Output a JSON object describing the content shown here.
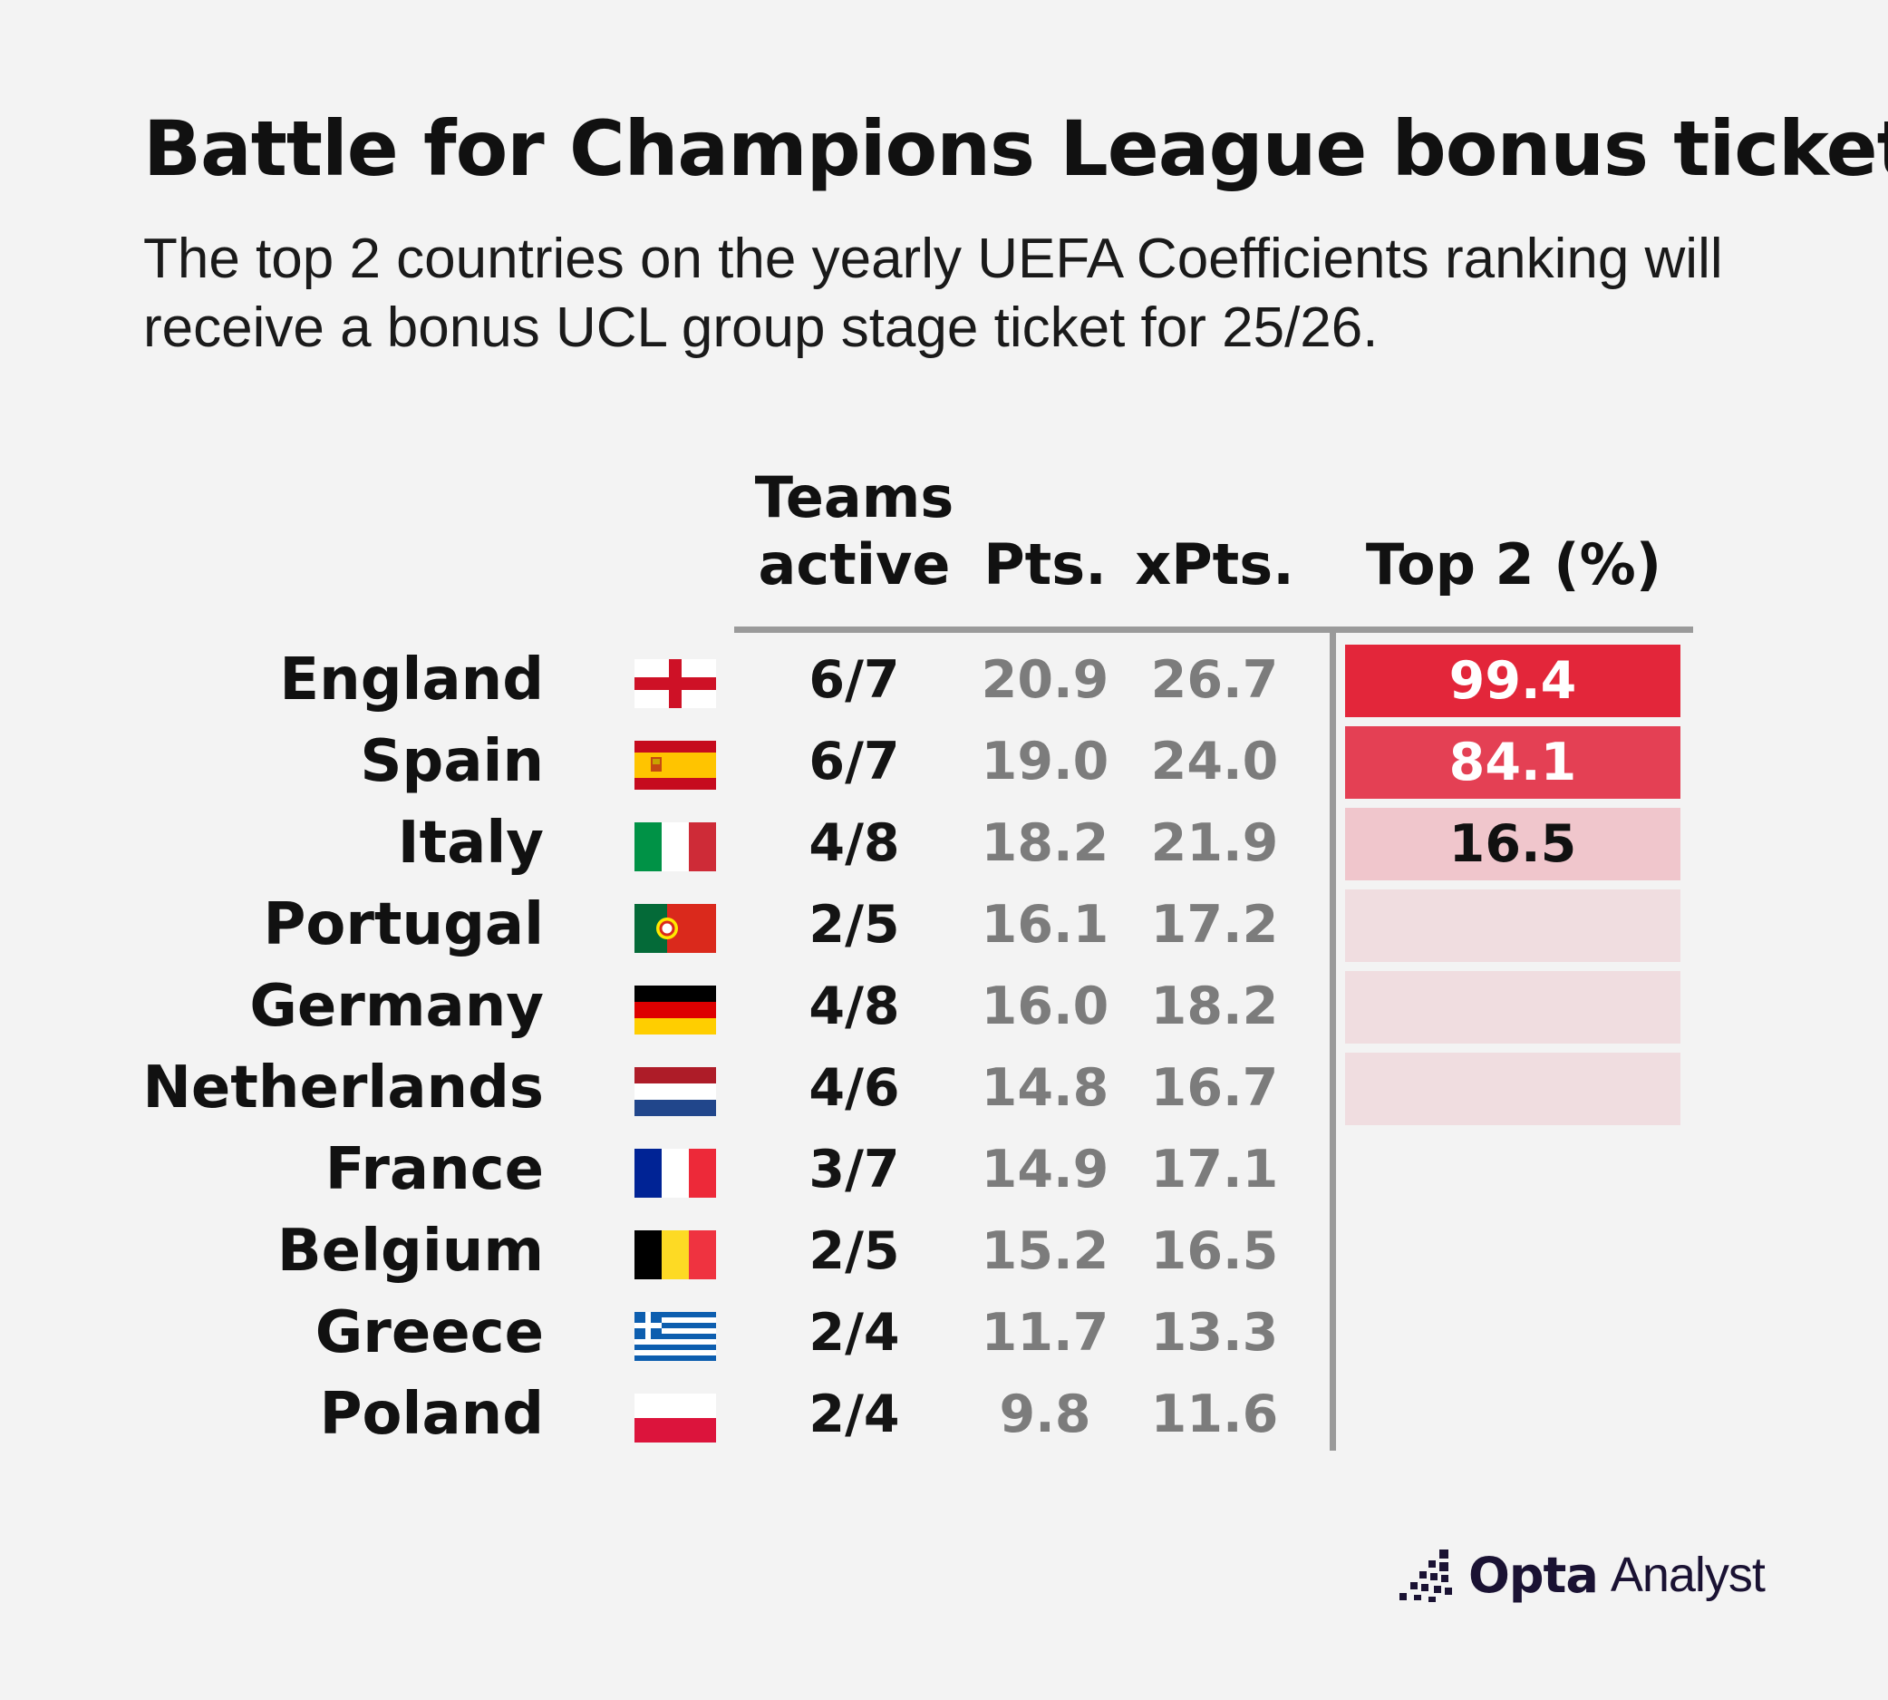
{
  "title": "Battle for Champions League bonus ticket",
  "subtitle": "The top 2 countries on the yearly UEFA Coefficients ranking will receive a bonus UCL group stage ticket for 25/26.",
  "logo": {
    "brand": "Opta",
    "product": "Analyst"
  },
  "colors": {
    "background": "#f3f3f3",
    "pct_high": "#e3263a",
    "pct_mid": "#e44054",
    "pct_low": "#f0c6cc",
    "pct_zero": "#f0dde0",
    "divider": "#9a9a9a",
    "muted_number": "#7c7c7c"
  },
  "chart_data": {
    "type": "table",
    "columns": [
      "Teams active",
      "Pts.",
      "xPts.",
      "Top 2 (%)"
    ],
    "column_headers": {
      "teams_line1": "Teams",
      "teams_line2": "active",
      "pts": "Pts.",
      "xpts": "xPts.",
      "top2": "Top 2 (%)"
    },
    "rows": [
      {
        "country": "England",
        "flag": "england-flag",
        "teams_active": "6/7",
        "pts": "20.9",
        "xpts": "26.7",
        "top2": "99.4",
        "top2_value": 99.4
      },
      {
        "country": "Spain",
        "flag": "spain-flag",
        "teams_active": "6/7",
        "pts": "19.0",
        "xpts": "24.0",
        "top2": "84.1",
        "top2_value": 84.1
      },
      {
        "country": "Italy",
        "flag": "italy-flag",
        "teams_active": "4/8",
        "pts": "18.2",
        "xpts": "21.9",
        "top2": "16.5",
        "top2_value": 16.5
      },
      {
        "country": "Portugal",
        "flag": "portugal-flag",
        "teams_active": "2/5",
        "pts": "16.1",
        "xpts": "17.2",
        "top2": "",
        "top2_value": 0
      },
      {
        "country": "Germany",
        "flag": "germany-flag",
        "teams_active": "4/8",
        "pts": "16.0",
        "xpts": "18.2",
        "top2": "",
        "top2_value": 0
      },
      {
        "country": "Netherlands",
        "flag": "netherlands-flag",
        "teams_active": "4/6",
        "pts": "14.8",
        "xpts": "16.7",
        "top2": "",
        "top2_value": 0
      },
      {
        "country": "France",
        "flag": "france-flag",
        "teams_active": "3/7",
        "pts": "14.9",
        "xpts": "17.1",
        "top2": null,
        "top2_value": null
      },
      {
        "country": "Belgium",
        "flag": "belgium-flag",
        "teams_active": "2/5",
        "pts": "15.2",
        "xpts": "16.5",
        "top2": null,
        "top2_value": null
      },
      {
        "country": "Greece",
        "flag": "greece-flag",
        "teams_active": "2/4",
        "pts": "11.7",
        "xpts": "13.3",
        "top2": null,
        "top2_value": null
      },
      {
        "country": "Poland",
        "flag": "poland-flag",
        "teams_active": "2/4",
        "pts": "9.8",
        "xpts": "11.6",
        "top2": null,
        "top2_value": null
      }
    ]
  }
}
